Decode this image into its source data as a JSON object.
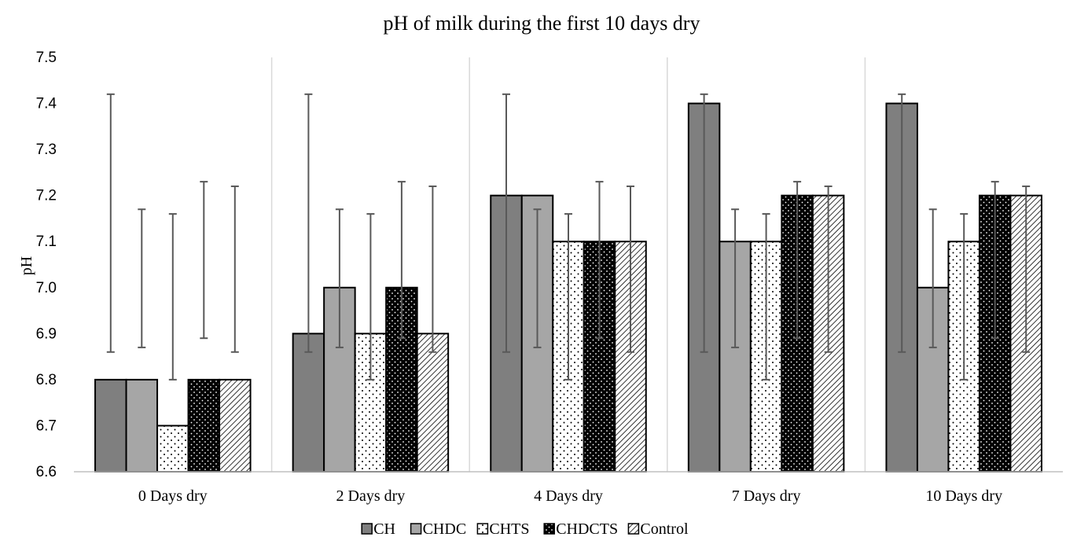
{
  "chart_data": {
    "type": "bar",
    "title": "pH of milk during the first 10 days dry",
    "xlabel": "",
    "ylabel": "pH",
    "ylim": [
      6.6,
      7.5
    ],
    "yticks": [
      "6.6",
      "6.7",
      "6.8",
      "6.9",
      "7.0",
      "7.1",
      "7.2",
      "7.3",
      "7.4",
      "7.5"
    ],
    "categories": [
      "0 Days dry",
      "2 Days dry",
      "4 Days dry",
      "7 Days dry",
      "10 Days dry"
    ],
    "series": [
      {
        "name": "CH",
        "values": [
          6.8,
          6.9,
          7.2,
          7.4,
          7.4
        ],
        "error_low": [
          6.86,
          6.86,
          6.86,
          6.86,
          6.86
        ],
        "error_high": [
          7.42,
          7.42,
          7.42,
          7.42,
          7.42
        ],
        "fill": "#7f7f7f",
        "pattern": "solid"
      },
      {
        "name": "CHDC",
        "values": [
          6.8,
          7.0,
          7.2,
          7.1,
          7.0
        ],
        "error_low": [
          6.87,
          6.87,
          6.87,
          6.87,
          6.87
        ],
        "error_high": [
          7.17,
          7.17,
          7.17,
          7.17,
          7.17
        ],
        "fill": "#a6a6a6",
        "pattern": "solid"
      },
      {
        "name": "CHTS",
        "values": [
          6.7,
          6.9,
          7.1,
          7.1,
          7.1
        ],
        "error_low": [
          6.8,
          6.8,
          6.8,
          6.8,
          6.8
        ],
        "error_high": [
          7.16,
          7.16,
          7.16,
          7.16,
          7.16
        ],
        "fill": "#ffffff",
        "pattern": "sparse-dots"
      },
      {
        "name": "CHDCTS",
        "values": [
          6.8,
          7.0,
          7.1,
          7.2,
          7.2
        ],
        "error_low": [
          6.89,
          6.89,
          6.89,
          6.89,
          6.89
        ],
        "error_high": [
          7.23,
          7.23,
          7.23,
          7.23,
          7.23
        ],
        "fill": "#000000",
        "pattern": "dense-dots"
      },
      {
        "name": "Control",
        "values": [
          6.8,
          6.9,
          7.1,
          7.2,
          7.2
        ],
        "error_low": [
          6.86,
          6.86,
          6.86,
          6.86,
          6.86
        ],
        "error_high": [
          7.22,
          7.22,
          7.22,
          7.22,
          7.22
        ],
        "fill": "#ffffff",
        "pattern": "diagonal-hatch"
      }
    ],
    "grid": "vertical category separators",
    "legend_position": "bottom"
  }
}
